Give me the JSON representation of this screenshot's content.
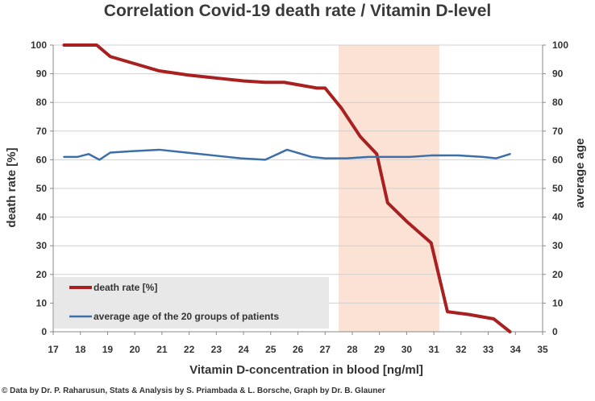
{
  "chart_data": {
    "type": "line",
    "title": "Correlation Covid-19 death rate / Vitamin D-level",
    "xlabel": "Vitamin D-concentration in blood [ng/ml]",
    "ylabel": "death rate [%]",
    "y2label": "average age",
    "xlim": [
      17,
      35
    ],
    "ylim": [
      0,
      100
    ],
    "y2lim": [
      0,
      100
    ],
    "x_ticks": [
      "17",
      "18",
      "19",
      "20",
      "21",
      "22",
      "23",
      "24",
      "25",
      "26",
      "27",
      "28",
      "29",
      "30",
      "31",
      "32",
      "33",
      "34",
      "35"
    ],
    "y_ticks": [
      "0",
      "10",
      "20",
      "30",
      "40",
      "50",
      "60",
      "70",
      "80",
      "90",
      "100"
    ],
    "y2_ticks": [
      "0",
      "10",
      "20",
      "30",
      "40",
      "50",
      "60",
      "70",
      "80",
      "90",
      "100"
    ],
    "highlight_band": [
      27.5,
      31.2
    ],
    "series": [
      {
        "name": "death rate [%]",
        "color": "#a8201f",
        "x": [
          17.4,
          18.0,
          18.6,
          19.1,
          20.0,
          20.9,
          22.0,
          23.0,
          24.0,
          24.8,
          25.5,
          26.7,
          27.0,
          27.6,
          28.3,
          28.9,
          29.3,
          30.0,
          30.9,
          31.5,
          32.3,
          33.2,
          33.8
        ],
        "y": [
          100,
          100,
          100,
          96,
          93.5,
          91,
          89.5,
          88.5,
          87.5,
          87,
          87,
          85,
          85,
          78,
          68,
          62,
          45,
          38.5,
          31,
          7,
          6,
          4.5,
          0
        ]
      },
      {
        "name": "average age of the 20 groups of patients",
        "color": "#3c6fa8",
        "x": [
          17.4,
          17.9,
          18.3,
          18.7,
          19.1,
          19.9,
          20.9,
          21.9,
          22.9,
          23.9,
          24.8,
          25.6,
          26.5,
          27.0,
          27.8,
          28.6,
          29.3,
          30.1,
          30.9,
          31.9,
          32.8,
          33.3,
          33.8
        ],
        "y": [
          61,
          61,
          62,
          60,
          62.5,
          63,
          63.5,
          62.5,
          61.5,
          60.5,
          60,
          63.5,
          61,
          60.5,
          60.5,
          61,
          61,
          61,
          61.5,
          61.5,
          61,
          60.5,
          62
        ]
      }
    ]
  },
  "credit": "© Data by Dr. P. Raharusun, Stats & Analysis by S. Priambada & L. Borsche, Graph by Dr. B. Glauner"
}
